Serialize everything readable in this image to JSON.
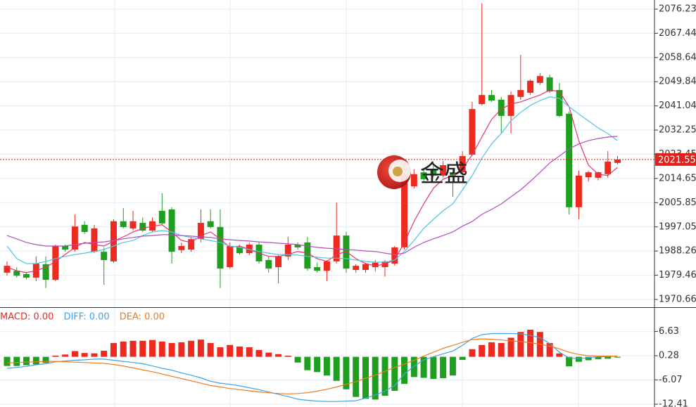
{
  "chart_data": [
    {
      "type": "candlestick",
      "up_color": "#ee2a1e",
      "down_color": "#1f9e1f",
      "open": [
        1980.4,
        1981.1,
        1979.9,
        1978.6,
        1983.5,
        1977.8,
        1990.1,
        1988.8,
        1997.8,
        1988.0,
        1988.0,
        1984.5,
        1999.1,
        1996.5,
        1998.5,
        1995.7,
        2002.9,
        2003.4,
        1988.6,
        1988.8,
        1992.6,
        1999.1,
        1997.0,
        1982.4,
        1989.6,
        1987.5,
        1990.6,
        1985.0,
        1982.4,
        1986.3,
        1990.6,
        1991.4,
        1982.4,
        1981.1,
        1984.5,
        1993.9,
        1981.4,
        1981.4,
        1982.4,
        1982.4,
        1983.7,
        1989.6,
        2011.8,
        2016.9,
        2018.2,
        2015.7,
        2016.9,
        2016.9,
        2023.3,
        2041.7,
        2045.0,
        2043.3,
        2037.4,
        2044.3,
        2045.8,
        2049.4,
        2051.4,
        2046.8,
        2038.2,
        2004.2,
        2015.1,
        2014.9,
        2016.2,
        2020.3
      ],
      "high": [
        1984.5,
        1982.4,
        1980.4,
        1986.3,
        1986.3,
        1990.6,
        1990.6,
        2001.6,
        1999.1,
        1997.8,
        1989.6,
        1999.8,
        2003.9,
        2002.9,
        2000.5,
        2000.5,
        2009.3,
        2004.2,
        1991.4,
        1993.4,
        2003.4,
        2003.4,
        2003.4,
        1991.4,
        1990.6,
        1991.4,
        1991.4,
        1986.3,
        1986.8,
        1993.4,
        1991.4,
        1993.4,
        1984.0,
        1985.0,
        2005.9,
        1995.2,
        1983.5,
        1984.0,
        1985.0,
        1985.0,
        1990.1,
        2016.9,
        2018.0,
        2018.0,
        2020.0,
        2021.0,
        2018.0,
        2024.6,
        2042.5,
        2078.3,
        2046.8,
        2044.3,
        2046.3,
        2059.6,
        2050.7,
        2053.0,
        2052.4,
        2049.4,
        2039.0,
        2017.5,
        2017.5,
        2017.2,
        2024.6,
        2022.8
      ],
      "low": [
        1979.3,
        1978.6,
        1978.0,
        1977.3,
        1974.8,
        1977.3,
        1988.0,
        1988.0,
        1994.5,
        1987.5,
        1976.0,
        1984.0,
        1996.5,
        1995.7,
        1995.2,
        1995.2,
        1997.8,
        1983.7,
        1987.5,
        1988.0,
        1991.4,
        1996.5,
        1974.8,
        1981.9,
        1987.0,
        1986.8,
        1983.7,
        1980.4,
        1976.5,
        1985.0,
        1988.8,
        1981.1,
        1980.4,
        1977.3,
        1983.7,
        1980.4,
        1980.4,
        1980.4,
        1980.8,
        1979.0,
        1983.0,
        1988.8,
        2011.0,
        2013.5,
        2015.0,
        2015.0,
        2008.0,
        2016.2,
        2022.8,
        2041.2,
        2042.5,
        2031.0,
        2031.0,
        2043.3,
        2045.0,
        2048.7,
        2045.8,
        2037.0,
        2001.6,
        1999.8,
        2013.5,
        2014.0,
        2014.9,
        2019.8
      ],
      "close": [
        1982.9,
        1979.3,
        1978.6,
        1983.7,
        1977.8,
        1990.1,
        1988.8,
        1997.2,
        1995.2,
        1996.5,
        1985.0,
        1999.1,
        1997.0,
        1999.1,
        1995.7,
        1999.1,
        1998.3,
        1988.0,
        1990.1,
        1992.6,
        1998.5,
        1997.0,
        1981.9,
        1990.1,
        1987.5,
        1990.6,
        1984.5,
        1981.9,
        1986.3,
        1990.6,
        1989.6,
        1981.9,
        1981.1,
        1984.5,
        1993.9,
        1981.9,
        1982.9,
        1983.5,
        1984.0,
        1984.5,
        1989.6,
        2015.7,
        2016.2,
        2014.4,
        2015.7,
        2019.5,
        2015.7,
        2022.8,
        2039.9,
        2045.0,
        2043.0,
        2037.4,
        2045.0,
        2046.8,
        2050.2,
        2051.9,
        2046.3,
        2037.4,
        2004.2,
        2015.7,
        2016.9,
        2016.9,
        2020.8,
        2021.5
      ],
      "series": [
        {
          "color": "#e8336a",
          "values": [
            1982.4,
            1981.1,
            1980.4,
            1981.1,
            1982.4,
            1984.5,
            1987.0,
            1989.6,
            1991.4,
            1990.6,
            1990.1,
            1991.9,
            1993.4,
            1995.2,
            1996.5,
            1997.3,
            1997.8,
            1995.2,
            1992.1,
            1991.4,
            1993.9,
            1995.2,
            1992.7,
            1989.6,
            1990.1,
            1988.8,
            1987.5,
            1986.3,
            1986.3,
            1987.0,
            1988.1,
            1987.5,
            1985.5,
            1984.5,
            1987.0,
            1988.1,
            1985.5,
            1983.7,
            1982.9,
            1983.5,
            1985.0,
            1991.4,
            1999.0,
            2005.4,
            2011.1,
            2014.4,
            2015.7,
            2018.2,
            2023.3,
            2029.7,
            2036.1,
            2039.9,
            2041.7,
            2042.5,
            2043.8,
            2045.0,
            2046.8,
            2046.3,
            2040.7,
            2028.4,
            2019.5,
            2016.2,
            2015.7,
            2018.7
          ]
        },
        {
          "color": "#4ec4e2",
          "values": [
            1990.1,
            1985.5,
            1983.7,
            1983.7,
            1984.5,
            1985.5,
            1986.3,
            1987.0,
            1987.5,
            1988.1,
            1988.8,
            1990.1,
            1991.4,
            1992.1,
            1993.9,
            1995.2,
            1995.7,
            1995.2,
            1993.9,
            1993.2,
            1992.7,
            1992.1,
            1991.4,
            1990.1,
            1989.6,
            1988.8,
            1988.1,
            1987.5,
            1987.0,
            1987.0,
            1986.8,
            1986.3,
            1986.0,
            1985.7,
            1985.7,
            1985.5,
            1985.0,
            1984.5,
            1984.2,
            1984.2,
            1985.0,
            1988.1,
            1992.1,
            1996.5,
            1999.8,
            2002.9,
            2005.4,
            2010.5,
            2015.7,
            2022.0,
            2027.2,
            2031.0,
            2035.6,
            2038.7,
            2041.2,
            2043.0,
            2044.3,
            2043.8,
            2040.7,
            2038.1,
            2035.6,
            2033.0,
            2031.0,
            2028.4
          ]
        },
        {
          "color": "#b44cc0",
          "values": [
            1993.9,
            1992.7,
            1991.4,
            1990.6,
            1990.1,
            1990.1,
            1990.1,
            1990.6,
            1991.1,
            1991.4,
            1991.6,
            1992.1,
            1992.7,
            1993.2,
            1993.7,
            1993.9,
            1994.2,
            1994.2,
            1993.9,
            1993.7,
            1993.4,
            1993.2,
            1992.7,
            1992.4,
            1992.1,
            1991.9,
            1991.6,
            1991.4,
            1991.1,
            1990.9,
            1990.6,
            1990.1,
            1989.6,
            1989.3,
            1989.1,
            1988.8,
            1988.6,
            1988.3,
            1988.1,
            1987.5,
            1987.0,
            1987.5,
            1989.6,
            1991.4,
            1992.7,
            1993.9,
            1995.2,
            1997.3,
            1999.0,
            2001.6,
            2003.4,
            2005.4,
            2008.0,
            2010.5,
            2013.6,
            2016.9,
            2020.3,
            2022.8,
            2025.4,
            2027.2,
            2028.4,
            2029.2,
            2029.7,
            2030.0
          ]
        }
      ],
      "ylim": [
        1967.85,
        2079.55
      ],
      "yticks": [
        2076.23,
        2067.44,
        2058.64,
        2049.84,
        2041.04,
        2032.25,
        2023.45,
        2014.65,
        2005.85,
        1997.05,
        1988.26,
        1979.46,
        1970.66
      ],
      "last_price": 2021.55,
      "watermark": "金盛",
      "grid": true
    },
    {
      "type": "macd",
      "legend": [
        {
          "label": "MACD: 0.00",
          "color": "#ee2a1e"
        },
        {
          "label": "DIFF: 0.00",
          "color": "#3fa3e8"
        },
        {
          "label": "DEA: 0.00",
          "color": "#f07a1e"
        }
      ],
      "pos_color": "#ee2a1e",
      "neg_color": "#1f9e1f",
      "values": [
        -2.4,
        -2.4,
        -2.2,
        -2.0,
        -1.6,
        0.3,
        0.6,
        1.5,
        1.0,
        0.9,
        1.6,
        3.6,
        4.0,
        4.2,
        4.2,
        4.4,
        4.0,
        3.6,
        3.8,
        4.2,
        4.5,
        3.6,
        2.5,
        3.1,
        2.7,
        2.5,
        1.8,
        1.1,
        0.7,
        0.3,
        -1.5,
        -3.5,
        -4.0,
        -4.9,
        -6.3,
        -8.5,
        -10.5,
        -11.0,
        -11.2,
        -10.2,
        -8.9,
        -7.1,
        -5.3,
        -5.5,
        -5.8,
        -5.6,
        -4.9,
        -0.8,
        2.0,
        3.1,
        3.8,
        3.6,
        5.0,
        6.5,
        7.1,
        6.5,
        3.6,
        0.9,
        -2.5,
        -1.3,
        -0.9,
        -0.6,
        -0.5,
        -0.2
      ],
      "series": [
        {
          "color": "#3fa3e8",
          "values": [
            -3.0,
            -2.8,
            -2.5,
            -2.1,
            -1.8,
            -1.3,
            -1.1,
            -0.9,
            -0.8,
            -0.6,
            -0.6,
            -0.9,
            -1.2,
            -1.5,
            -1.8,
            -2.4,
            -3.0,
            -3.5,
            -4.2,
            -4.8,
            -5.5,
            -6.4,
            -6.9,
            -7.2,
            -7.6,
            -8.1,
            -8.6,
            -9.2,
            -9.8,
            -10.4,
            -11.1,
            -11.4,
            -11.6,
            -11.7,
            -11.7,
            -11.6,
            -11.5,
            -10.8,
            -10.0,
            -9.0,
            -7.5,
            -4.5,
            -2.5,
            -0.8,
            0.0,
            0.8,
            1.5,
            3.0,
            4.8,
            5.8,
            6.1,
            6.1,
            6.1,
            6.0,
            5.6,
            5.0,
            3.5,
            1.2,
            -0.3,
            -0.5,
            -0.2,
            0.0,
            0.1,
            0.2
          ]
        },
        {
          "color": "#f07a1e",
          "values": [
            -1.6,
            -1.5,
            -1.4,
            -1.3,
            -1.2,
            -1.2,
            -1.3,
            -1.4,
            -1.5,
            -1.6,
            -1.7,
            -2.0,
            -2.4,
            -2.9,
            -3.4,
            -3.9,
            -4.5,
            -5.1,
            -5.7,
            -6.3,
            -6.9,
            -7.5,
            -7.9,
            -8.3,
            -8.6,
            -8.9,
            -9.2,
            -9.4,
            -9.6,
            -9.7,
            -9.6,
            -9.4,
            -9.0,
            -8.5,
            -7.9,
            -7.2,
            -6.5,
            -5.6,
            -4.8,
            -3.8,
            -2.8,
            -1.9,
            -0.9,
            0.2,
            1.2,
            2.2,
            3.0,
            3.8,
            4.5,
            4.7,
            4.6,
            4.4,
            4.2,
            4.0,
            3.7,
            3.3,
            2.8,
            2.1,
            1.2,
            0.6,
            0.3,
            0.2,
            0.2,
            0.2
          ]
        }
      ],
      "ylim": [
        -13.14,
        12.44
      ],
      "yticks": [
        6.63,
        0.28,
        -6.07,
        -12.41
      ],
      "grid": true
    }
  ]
}
